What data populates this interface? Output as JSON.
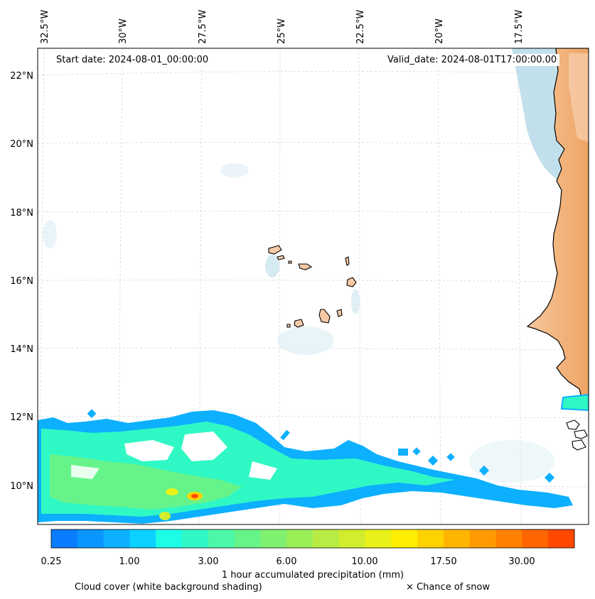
{
  "header": {
    "start_date": "Start date: 2024-08-01_00:00:00",
    "valid_date": "Valid_date: 2024-08-01T17:00:00.00"
  },
  "axes": {
    "lon_labels": [
      "32.5°W",
      "30°W",
      "27.5°W",
      "25°W",
      "22.5°W",
      "20°W",
      "17.5°W"
    ],
    "lat_labels": [
      "22°N",
      "20°N",
      "18°N",
      "16°N",
      "14°N",
      "12°N",
      "10°N"
    ]
  },
  "colorbar": {
    "tick_labels": [
      "0.25",
      "1.00",
      "3.00",
      "6.00",
      "10.00",
      "17.50",
      "30.00"
    ],
    "label": "1 hour accumulated precipitation (mm)",
    "colors": [
      "#0a7dff",
      "#0b96ff",
      "#0cb0ff",
      "#0cd0ff",
      "#1dfde6",
      "#30f8c4",
      "#4cf7a8",
      "#66f48a",
      "#80f070",
      "#9cee58",
      "#b8ec44",
      "#d2ec2e",
      "#e8f21a",
      "#fdee00",
      "#fdd200",
      "#ffb500",
      "#ff9a00",
      "#ff8000",
      "#ff6500",
      "#ff4800"
    ]
  },
  "legend": {
    "cloud_cover": "Cloud cover (white background shading)",
    "snow": "× Chance of snow"
  },
  "colors": {
    "land": "#f0a464",
    "cloud": "#aed6e6",
    "precip_light": "#0cb0ff",
    "precip_mid": "#30f8c4",
    "precip_heavy": "#fdee00",
    "precip_max": "#ff4800"
  }
}
